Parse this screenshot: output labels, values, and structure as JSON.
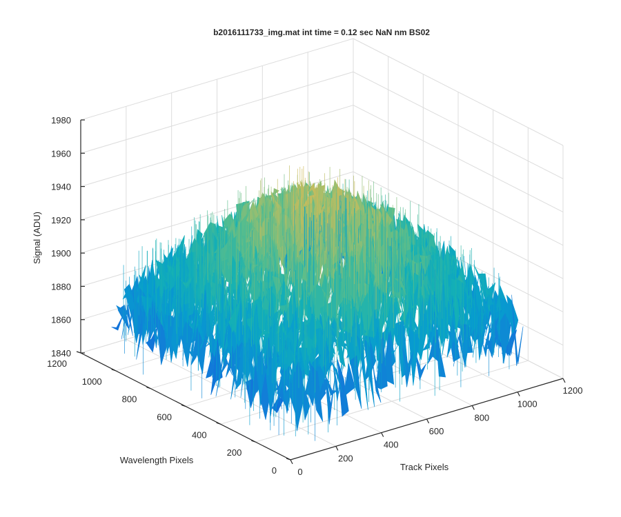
{
  "chart_data": {
    "type": "surface",
    "title": "b2016111733_img.mat int time = 0.12 sec  NaN nm BS02",
    "xlabel": "Track Pixels",
    "ylabel": "Wavelength Pixels",
    "zlabel": "Signal (ADU)",
    "xlim": [
      0,
      1200
    ],
    "ylim": [
      0,
      1200
    ],
    "zlim": [
      1840,
      1980
    ],
    "xticks": [
      "0",
      "200",
      "400",
      "600",
      "800",
      "1000",
      "1200"
    ],
    "yticks": [
      "0",
      "200",
      "400",
      "600",
      "800",
      "1000",
      "1200"
    ],
    "zticks": [
      "1840",
      "1860",
      "1880",
      "1900",
      "1920",
      "1940",
      "1960",
      "1980"
    ],
    "grid": true,
    "colormap": "parula",
    "data_extent": {
      "x": [
        0,
        1024
      ],
      "y": [
        0,
        1024
      ]
    },
    "surface_summary": {
      "baseline_signal": 1885,
      "peak_signal": 1955,
      "min_signal": 1843,
      "noise_amplitude": 20
    }
  }
}
